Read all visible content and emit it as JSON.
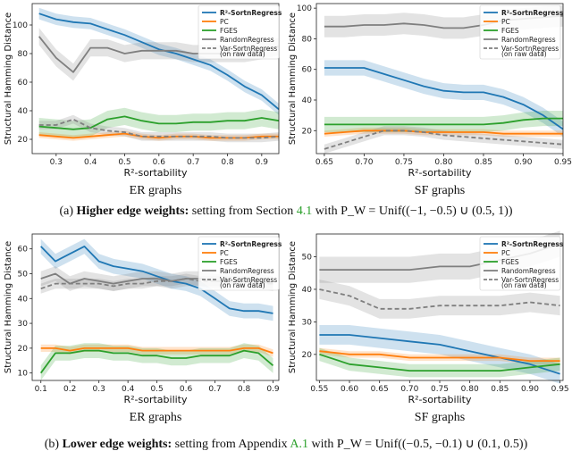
{
  "colors": {
    "sortn": "#1f77b4",
    "pc": "#ff7f0e",
    "fges": "#2ca02c",
    "random": "#7f7f7f",
    "var": "#7f7f7f"
  },
  "legend": [
    "R²-SortnRegress",
    "PC",
    "FGES",
    "RandomRegress",
    "Var-SortnRegress",
    "(on raw data)"
  ],
  "captions": {
    "a": {
      "label": "(a)",
      "bold": "Higher edge weights:",
      "text": "setting from Section",
      "ref": "4.1",
      "rest": "with P_W = Unif((−1, −0.5) ∪ (0.5, 1))"
    },
    "b": {
      "label": "(b)",
      "bold": "Lower edge weights:",
      "text": "setting from Appendix",
      "ref": "A.1",
      "rest": "with P_W = Unif((−0.5, −0.1) ∪ (0.1, 0.5))"
    }
  },
  "chart_data": [
    {
      "type": "line",
      "subtitle": "ER graphs",
      "xlabel": "R²-sortability",
      "ylabel": "Structural Hamming Distance",
      "xlim": [
        0.23,
        0.95
      ],
      "ylim": [
        10,
        115
      ],
      "xticks": [
        "0.3",
        "0.4",
        "0.5",
        "0.6",
        "0.7",
        "0.8",
        "0.9"
      ],
      "xtick_values": [
        0.3,
        0.4,
        0.5,
        0.6,
        0.7,
        0.8,
        0.9
      ],
      "yticks": [
        "20",
        "40",
        "60",
        "80",
        "100"
      ],
      "ytick_values": [
        20,
        40,
        60,
        80,
        100
      ],
      "x": [
        0.25,
        0.3,
        0.35,
        0.4,
        0.45,
        0.5,
        0.55,
        0.6,
        0.65,
        0.7,
        0.75,
        0.8,
        0.85,
        0.9,
        0.95
      ],
      "series": [
        {
          "key": "sortn",
          "name": "R²-SortnRegress",
          "values": [
            108,
            104,
            102,
            101,
            97,
            93,
            88,
            83,
            80,
            76,
            72,
            65,
            57,
            51,
            41
          ],
          "band": 4
        },
        {
          "key": "pc",
          "name": "PC",
          "values": [
            23,
            22,
            21,
            22,
            23,
            24,
            22,
            21,
            22,
            22,
            21,
            21,
            21,
            22,
            22
          ],
          "band": 2
        },
        {
          "key": "fges",
          "name": "FGES",
          "values": [
            29,
            28,
            27,
            28,
            34,
            36,
            33,
            31,
            31,
            32,
            32,
            33,
            33,
            35,
            33
          ],
          "band": 6
        },
        {
          "key": "random",
          "name": "RandomRegress",
          "values": [
            92,
            77,
            67,
            84,
            84,
            80,
            82,
            82,
            82,
            80,
            80,
            80,
            80,
            82,
            85
          ],
          "band": 6
        },
        {
          "key": "var",
          "name": "Var-SortnRegress (on raw data)",
          "values": [
            30,
            30,
            34,
            28,
            26,
            25,
            22,
            22,
            22,
            22,
            22,
            21,
            21,
            21,
            22
          ],
          "band": 3,
          "dashed": true
        }
      ]
    },
    {
      "type": "line",
      "subtitle": "SF graphs",
      "xlabel": "R²-sortability",
      "ylabel": "Structural Hamming Distance",
      "xlim": [
        0.64,
        0.95
      ],
      "ylim": [
        5,
        103
      ],
      "xticks": [
        "0.65",
        "0.70",
        "0.75",
        "0.80",
        "0.85",
        "0.90",
        "0.95"
      ],
      "xtick_values": [
        0.65,
        0.7,
        0.75,
        0.8,
        0.85,
        0.9,
        0.95
      ],
      "yticks": [
        "20",
        "40",
        "60",
        "80",
        "100"
      ],
      "ytick_values": [
        20,
        40,
        60,
        80,
        100
      ],
      "x": [
        0.65,
        0.675,
        0.7,
        0.725,
        0.75,
        0.775,
        0.8,
        0.825,
        0.85,
        0.875,
        0.9,
        0.925,
        0.95
      ],
      "series": [
        {
          "key": "sortn",
          "name": "R²-SortnRegress",
          "values": [
            61,
            61,
            61,
            57,
            53,
            49,
            46,
            45,
            45,
            42,
            37,
            30,
            21
          ],
          "band": 5
        },
        {
          "key": "pc",
          "name": "PC",
          "values": [
            18,
            19,
            20,
            20,
            20,
            19,
            19,
            19,
            19,
            18,
            18,
            18,
            18
          ],
          "band": 2
        },
        {
          "key": "fges",
          "name": "FGES",
          "values": [
            24,
            24,
            24,
            24,
            24,
            24,
            24,
            24,
            24,
            25,
            27,
            28,
            28
          ],
          "band": 5
        },
        {
          "key": "random",
          "name": "RandomRegress",
          "values": [
            88,
            88,
            89,
            89,
            90,
            89,
            87,
            87,
            89,
            92,
            93,
            94,
            95
          ],
          "band": 7
        },
        {
          "key": "var",
          "name": "Var-SortnRegress (on raw data)",
          "values": [
            8,
            12,
            16,
            20,
            20,
            19,
            17,
            16,
            15,
            14,
            13,
            12,
            11
          ],
          "band": 3,
          "dashed": true
        }
      ]
    },
    {
      "type": "line",
      "subtitle": "ER graphs",
      "xlabel": "R²-sortability",
      "ylabel": "Structural Hamming Distance",
      "xlim": [
        0.07,
        0.92
      ],
      "ylim": [
        7,
        66
      ],
      "xticks": [
        "0.1",
        "0.2",
        "0.3",
        "0.4",
        "0.5",
        "0.6",
        "0.7",
        "0.8",
        "0.9"
      ],
      "xtick_values": [
        0.1,
        0.2,
        0.3,
        0.4,
        0.5,
        0.6,
        0.7,
        0.8,
        0.9
      ],
      "yticks": [
        "10",
        "20",
        "30",
        "40",
        "50",
        "60"
      ],
      "ytick_values": [
        10,
        20,
        30,
        40,
        50,
        60
      ],
      "x": [
        0.1,
        0.15,
        0.2,
        0.25,
        0.3,
        0.35,
        0.4,
        0.45,
        0.5,
        0.55,
        0.6,
        0.65,
        0.7,
        0.75,
        0.8,
        0.85,
        0.9
      ],
      "series": [
        {
          "key": "sortn",
          "name": "R²-SortnRegress",
          "values": [
            61,
            55,
            58,
            61,
            55,
            53,
            52,
            51,
            49,
            47,
            46,
            44,
            40,
            36,
            35,
            35,
            34
          ],
          "band": 3
        },
        {
          "key": "pc",
          "name": "PC",
          "values": [
            20,
            20,
            19,
            20,
            20,
            20,
            20,
            19,
            19,
            19,
            19,
            19,
            19,
            19,
            20,
            20,
            18
          ],
          "band": 1.5
        },
        {
          "key": "fges",
          "name": "FGES",
          "values": [
            10,
            18,
            18,
            19,
            19,
            18,
            18,
            17,
            17,
            16,
            16,
            17,
            17,
            17,
            19,
            18,
            13
          ],
          "band": 3
        },
        {
          "key": "random",
          "name": "RandomRegress",
          "values": [
            48,
            50,
            46,
            48,
            47,
            46,
            47,
            48,
            48,
            47,
            48,
            48,
            47,
            47,
            47,
            47,
            46
          ],
          "band": 3
        },
        {
          "key": "var",
          "name": "Var-SortnRegress (on raw data)",
          "values": [
            44,
            46,
            46,
            46,
            46,
            45,
            46,
            46,
            47,
            47,
            48,
            47,
            47,
            47,
            47,
            46,
            46
          ],
          "band": 2,
          "dashed": true
        }
      ]
    },
    {
      "type": "line",
      "subtitle": "SF graphs",
      "xlabel": "R²-sortability",
      "ylabel": "Structural Hamming Distance",
      "xlim": [
        0.545,
        0.955
      ],
      "ylim": [
        12,
        57
      ],
      "xticks": [
        "0.55",
        "0.60",
        "0.65",
        "0.70",
        "0.75",
        "0.80",
        "0.85",
        "0.90",
        "0.95"
      ],
      "xtick_values": [
        0.55,
        0.6,
        0.65,
        0.7,
        0.75,
        0.8,
        0.85,
        0.9,
        0.95
      ],
      "yticks": [
        "20",
        "30",
        "40",
        "50"
      ],
      "ytick_values": [
        20,
        30,
        40,
        50
      ],
      "x": [
        0.55,
        0.6,
        0.65,
        0.7,
        0.75,
        0.8,
        0.85,
        0.9,
        0.95
      ],
      "series": [
        {
          "key": "sortn",
          "name": "R²-SortnRegress",
          "values": [
            26,
            26,
            25,
            24,
            23,
            21,
            19,
            17,
            14
          ],
          "band": 3
        },
        {
          "key": "pc",
          "name": "PC",
          "values": [
            21,
            20,
            20,
            19,
            19,
            19,
            19,
            18,
            18
          ],
          "band": 1
        },
        {
          "key": "fges",
          "name": "FGES",
          "values": [
            20,
            17,
            16,
            15,
            15,
            15,
            15,
            16,
            17
          ],
          "band": 2
        },
        {
          "key": "random",
          "name": "RandomRegress",
          "values": [
            46,
            46,
            46,
            46,
            47,
            47,
            49,
            51,
            54
          ],
          "band": 4
        },
        {
          "key": "var",
          "name": "Var-SortnRegress (on raw data)",
          "values": [
            40,
            38,
            34,
            34,
            35,
            35,
            35,
            36,
            35
          ],
          "band": 3,
          "dashed": true
        }
      ]
    }
  ]
}
